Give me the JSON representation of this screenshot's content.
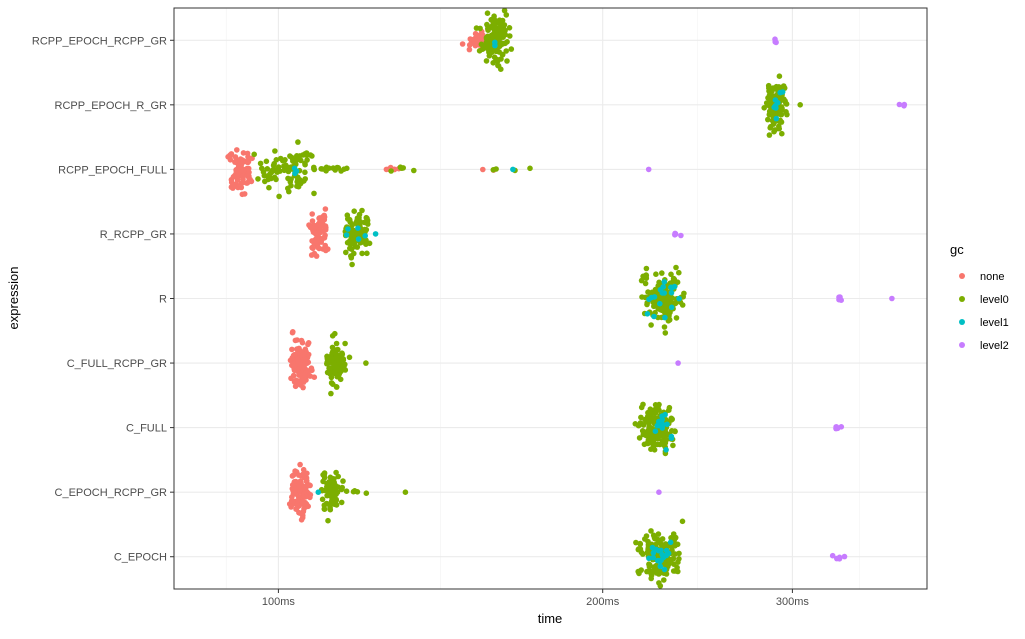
{
  "chart_data": {
    "type": "scatter",
    "style": "beeswarm",
    "xlabel": "time",
    "ylabel": "expression",
    "x_scale": "log10",
    "x_unit": "ms",
    "xlim": [
      80,
      400
    ],
    "x_ticks": [
      {
        "value": 100,
        "label": "100ms"
      },
      {
        "value": 200,
        "label": "200ms"
      },
      {
        "value": 300,
        "label": "300ms"
      }
    ],
    "categories": [
      "C_EPOCH",
      "C_EPOCH_RCPP_GR",
      "C_FULL",
      "C_FULL_RCPP_GR",
      "R",
      "R_RCPP_GR",
      "RCPP_EPOCH_FULL",
      "RCPP_EPOCH_R_GR",
      "RCPP_EPOCH_RCPP_GR"
    ],
    "grid": true,
    "legend": {
      "title": "gc",
      "position": "right",
      "entries": [
        {
          "label": "none",
          "color": "#F8766D"
        },
        {
          "label": "level0",
          "color": "#7CAE00"
        },
        {
          "label": "level1",
          "color": "#00BFC4"
        },
        {
          "label": "level2",
          "color": "#C77CFF"
        }
      ]
    },
    "series": [
      {
        "expression": "RCPP_EPOCH_RCPP_GR",
        "clusters": [
          {
            "gc": "none",
            "center": 153,
            "spread": 3,
            "count": 40,
            "height": 9
          },
          {
            "gc": "level0",
            "center": 159,
            "spread": 4,
            "count": 110,
            "height": 26
          },
          {
            "gc": "level1",
            "center": 159,
            "spread": 1,
            "count": 2,
            "height": 6
          },
          {
            "gc": "level2",
            "center": 290,
            "spread": 1,
            "count": 3,
            "height": 3
          }
        ]
      },
      {
        "expression": "RCPP_EPOCH_R_GR",
        "clusters": [
          {
            "gc": "level0",
            "center": 290,
            "spread": 5,
            "count": 110,
            "height": 26
          },
          {
            "gc": "level1",
            "center": 290,
            "spread": 3,
            "count": 8,
            "height": 14
          },
          {
            "gc": "level0",
            "center": 305,
            "spread": 1,
            "count": 1,
            "height": 0
          },
          {
            "gc": "level2",
            "center": 378,
            "spread": 5,
            "count": 3,
            "height": 2
          }
        ]
      },
      {
        "expression": "RCPP_EPOCH_FULL",
        "clusters": [
          {
            "gc": "none",
            "center": 92,
            "spread": 2,
            "count": 90,
            "height": 22
          },
          {
            "gc": "level0",
            "center": 102,
            "spread": 5,
            "count": 90,
            "height": 26
          },
          {
            "gc": "level1",
            "center": 103,
            "spread": 2,
            "count": 3,
            "height": 4
          },
          {
            "gc": "level0",
            "center": 112,
            "spread": 4,
            "count": 14,
            "height": 3
          },
          {
            "gc": "none",
            "center": 128,
            "spread": 2,
            "count": 6,
            "height": 2
          },
          {
            "gc": "level0",
            "center": 132,
            "spread": 5,
            "count": 6,
            "height": 2
          },
          {
            "gc": "none",
            "center": 155,
            "spread": 4,
            "count": 2,
            "height": 1
          },
          {
            "gc": "level0",
            "center": 165,
            "spread": 10,
            "count": 4,
            "height": 1
          },
          {
            "gc": "level1",
            "center": 165,
            "spread": 1,
            "count": 1,
            "height": 0
          },
          {
            "gc": "level2",
            "center": 220,
            "spread": 1,
            "count": 1,
            "height": 0
          }
        ]
      },
      {
        "expression": "R_RCPP_GR",
        "clusters": [
          {
            "gc": "none",
            "center": 109,
            "spread": 2,
            "count": 80,
            "height": 22
          },
          {
            "gc": "level0",
            "center": 118,
            "spread": 3,
            "count": 90,
            "height": 26
          },
          {
            "gc": "level1",
            "center": 119,
            "spread": 3,
            "count": 5,
            "height": 10
          },
          {
            "gc": "level1",
            "center": 124,
            "spread": 1,
            "count": 1,
            "height": 0
          },
          {
            "gc": "level2",
            "center": 233,
            "spread": 4,
            "count": 4,
            "height": 2
          }
        ]
      },
      {
        "expression": "R",
        "clusters": [
          {
            "gc": "level0",
            "center": 228,
            "spread": 8,
            "count": 150,
            "height": 26
          },
          {
            "gc": "level1",
            "center": 228,
            "spread": 6,
            "count": 18,
            "height": 20
          },
          {
            "gc": "level2",
            "center": 332,
            "spread": 1,
            "count": 4,
            "height": 3
          },
          {
            "gc": "level2",
            "center": 372,
            "spread": 1,
            "count": 1,
            "height": 0
          }
        ]
      },
      {
        "expression": "C_FULL_RCPP_GR",
        "clusters": [
          {
            "gc": "none",
            "center": 105,
            "spread": 2,
            "count": 110,
            "height": 28
          },
          {
            "gc": "level0",
            "center": 113,
            "spread": 2,
            "count": 90,
            "height": 24
          },
          {
            "gc": "level0",
            "center": 120,
            "spread": 1,
            "count": 1,
            "height": 0
          },
          {
            "gc": "level2",
            "center": 235,
            "spread": 1,
            "count": 1,
            "height": 0
          }
        ]
      },
      {
        "expression": "C_FULL",
        "clusters": [
          {
            "gc": "level0",
            "center": 225,
            "spread": 7,
            "count": 140,
            "height": 26
          },
          {
            "gc": "level1",
            "center": 227,
            "spread": 5,
            "count": 14,
            "height": 18
          },
          {
            "gc": "level2",
            "center": 332,
            "spread": 5,
            "count": 5,
            "height": 2
          }
        ]
      },
      {
        "expression": "C_EPOCH_RCPP_GR",
        "clusters": [
          {
            "gc": "none",
            "center": 105,
            "spread": 2,
            "count": 100,
            "height": 28
          },
          {
            "gc": "level0",
            "center": 112,
            "spread": 2,
            "count": 80,
            "height": 24
          },
          {
            "gc": "level1",
            "center": 110,
            "spread": 2,
            "count": 1,
            "height": 0
          },
          {
            "gc": "level0",
            "center": 117,
            "spread": 3,
            "count": 5,
            "height": 2
          },
          {
            "gc": "level0",
            "center": 132,
            "spread": 1,
            "count": 1,
            "height": 0
          },
          {
            "gc": "level2",
            "center": 226,
            "spread": 1,
            "count": 1,
            "height": 0
          }
        ]
      },
      {
        "expression": "C_EPOCH",
        "clusters": [
          {
            "gc": "level0",
            "center": 226,
            "spread": 8,
            "count": 150,
            "height": 26
          },
          {
            "gc": "level1",
            "center": 226,
            "spread": 6,
            "count": 18,
            "height": 16
          },
          {
            "gc": "level2",
            "center": 332,
            "spread": 5,
            "count": 5,
            "height": 2
          }
        ]
      }
    ]
  }
}
